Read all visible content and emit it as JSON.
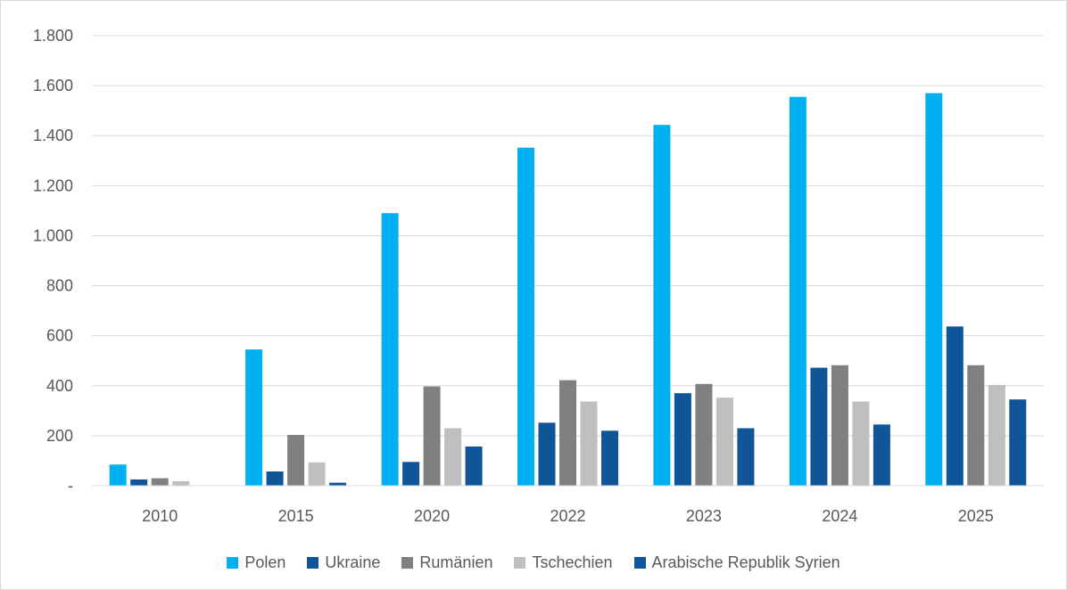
{
  "chart_data": {
    "type": "bar",
    "title": "",
    "xlabel": "",
    "ylabel": "",
    "categories": [
      "2010",
      "2015",
      "2020",
      "2022",
      "2023",
      "2024",
      "2025"
    ],
    "series": [
      {
        "name": "Polen",
        "color": "#00b0f0",
        "values": [
          85,
          545,
          1090,
          1352,
          1443,
          1555,
          1570
        ]
      },
      {
        "name": "Ukraine",
        "color": "#0f5597",
        "values": [
          25,
          57,
          95,
          252,
          370,
          472,
          637
        ]
      },
      {
        "name": "Rumänien",
        "color": "#808080",
        "values": [
          30,
          203,
          397,
          422,
          407,
          482,
          482
        ]
      },
      {
        "name": "Tschechien",
        "color": "#bfbfbf",
        "values": [
          18,
          93,
          230,
          337,
          352,
          337,
          403
        ]
      },
      {
        "name": "Arabische Republik Syrien",
        "color": "#0f5597",
        "values": [
          0,
          12,
          157,
          220,
          230,
          245,
          345
        ]
      }
    ],
    "ylim": [
      0,
      1800
    ],
    "y_ticks": [
      "-",
      "200",
      "400",
      "600",
      "800",
      "1.000",
      "1.200",
      "1.400",
      "1.600",
      "1.800"
    ],
    "grid": true,
    "legend": "bottom"
  }
}
